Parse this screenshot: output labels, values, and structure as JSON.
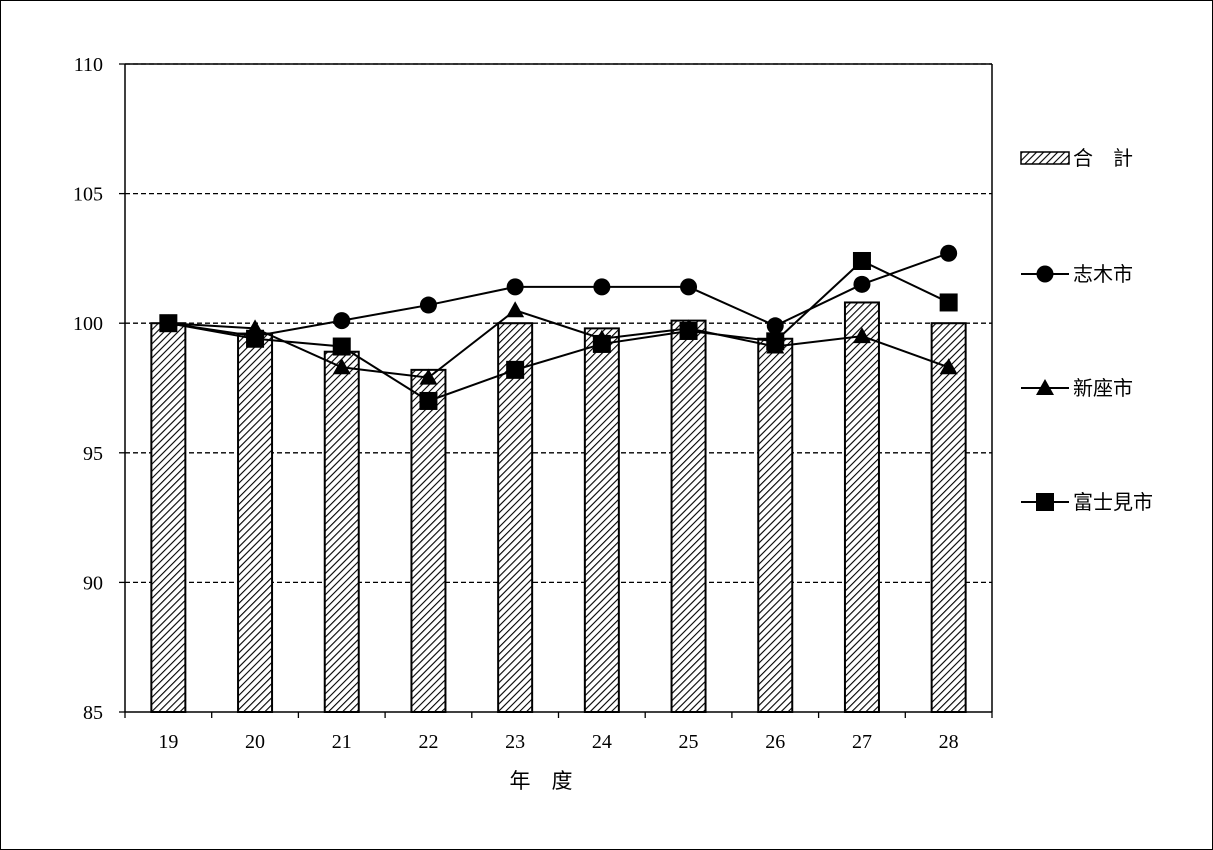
{
  "chart_data": {
    "type": "bar",
    "xlabel": "年　度",
    "ylabel": "",
    "ylim": [
      85,
      110
    ],
    "yticks": [
      "85",
      "90",
      "95",
      "100",
      "105",
      "110"
    ],
    "categories": [
      "19",
      "20",
      "21",
      "22",
      "23",
      "24",
      "25",
      "26",
      "27",
      "28"
    ],
    "grid": "horizontal dashed",
    "legend_position": "right",
    "series": [
      {
        "name": "合　計",
        "kind": "bar",
        "pattern": "diagonal-hatch",
        "values": [
          100.0,
          99.6,
          98.9,
          98.2,
          100.0,
          99.8,
          100.1,
          99.4,
          100.8,
          100.0
        ]
      },
      {
        "name": "志木市",
        "kind": "line",
        "marker": "circle",
        "values": [
          100.0,
          99.5,
          100.1,
          100.7,
          101.4,
          101.4,
          101.4,
          99.9,
          101.5,
          102.7
        ]
      },
      {
        "name": "新座市",
        "kind": "line",
        "marker": "triangle",
        "values": [
          100.0,
          99.8,
          98.3,
          97.9,
          100.5,
          99.4,
          99.8,
          99.1,
          99.5,
          98.3
        ]
      },
      {
        "name": "富士見市",
        "kind": "line",
        "marker": "square",
        "values": [
          100.0,
          99.4,
          99.1,
          97.0,
          98.2,
          99.2,
          99.7,
          99.3,
          102.4,
          100.8
        ]
      }
    ]
  }
}
